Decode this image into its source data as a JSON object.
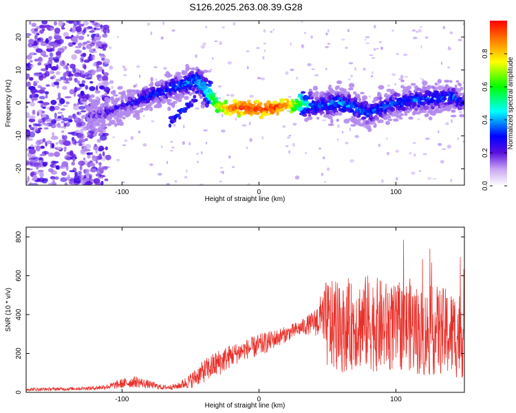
{
  "title": "S126.2025.263.08.39.G28",
  "chart_data": [
    {
      "type": "heatmap",
      "name": "spectrogram",
      "xlabel": "Height of straight line (km)",
      "ylabel": "Frequency (Hz)",
      "xlim": [
        -170,
        150
      ],
      "ylim": [
        -25,
        25
      ],
      "xticks": [
        -100,
        0,
        100
      ],
      "yticks": [
        -20,
        -10,
        0,
        10,
        20
      ],
      "ridge": {
        "x": [
          -120,
          -100,
          -80,
          -60,
          -45,
          -35,
          -30,
          -20,
          -10,
          0,
          10,
          20,
          30,
          40,
          60,
          80,
          100,
          120,
          140,
          150
        ],
        "frequency": [
          -4,
          -1,
          2,
          5,
          7,
          2,
          -1,
          -1.5,
          -1.5,
          -2,
          -1.5,
          -1,
          0,
          -1,
          0,
          -3,
          0,
          1,
          2,
          0
        ],
        "amplitude": [
          0.2,
          0.25,
          0.3,
          0.35,
          0.4,
          0.55,
          0.7,
          0.9,
          0.95,
          0.95,
          0.95,
          0.9,
          0.6,
          0.35,
          0.4,
          0.35,
          0.35,
          0.35,
          0.35,
          0.3
        ]
      },
      "secondary_ridge": {
        "x": [
          -65,
          -55,
          -45
        ],
        "frequency": [
          -6,
          -2,
          2
        ],
        "amplitude": [
          0.25,
          0.3,
          0.25
        ]
      },
      "colorbar": {
        "label": "Normalized spectral amplitude",
        "range": [
          0.0,
          1.0
        ],
        "ticks": [
          0.0,
          0.2,
          0.4,
          0.6,
          0.8
        ],
        "tick_labels": [
          "0.0",
          "0.2",
          "0.4",
          "0.6",
          "0.8"
        ]
      }
    },
    {
      "type": "line",
      "name": "snr",
      "xlabel": "Height of straight line (km)",
      "ylabel": "SNR (10 * v/v)",
      "xlim": [
        -170,
        150
      ],
      "ylim": [
        0,
        850
      ],
      "xticks": [
        -100,
        0,
        100
      ],
      "yticks": [
        0,
        200,
        400,
        600,
        800
      ],
      "color": "#e8302a",
      "envelope": {
        "x": [
          -170,
          -140,
          -120,
          -110,
          -100,
          -90,
          -80,
          -70,
          -60,
          -50,
          -40,
          -30,
          -20,
          -10,
          0,
          10,
          20,
          30,
          40,
          45,
          50,
          60,
          70,
          80,
          90,
          100,
          110,
          120,
          130,
          140,
          150
        ],
        "mean": [
          15,
          18,
          22,
          30,
          45,
          55,
          40,
          25,
          30,
          60,
          110,
          150,
          190,
          220,
          240,
          270,
          300,
          330,
          360,
          380,
          350,
          320,
          350,
          360,
          340,
          330,
          350,
          300,
          320,
          300,
          300
        ],
        "spread": [
          8,
          8,
          10,
          15,
          25,
          30,
          20,
          12,
          15,
          40,
          60,
          70,
          60,
          50,
          60,
          50,
          40,
          40,
          60,
          120,
          240,
          220,
          230,
          250,
          240,
          220,
          240,
          230,
          230,
          230,
          230
        ]
      }
    }
  ]
}
